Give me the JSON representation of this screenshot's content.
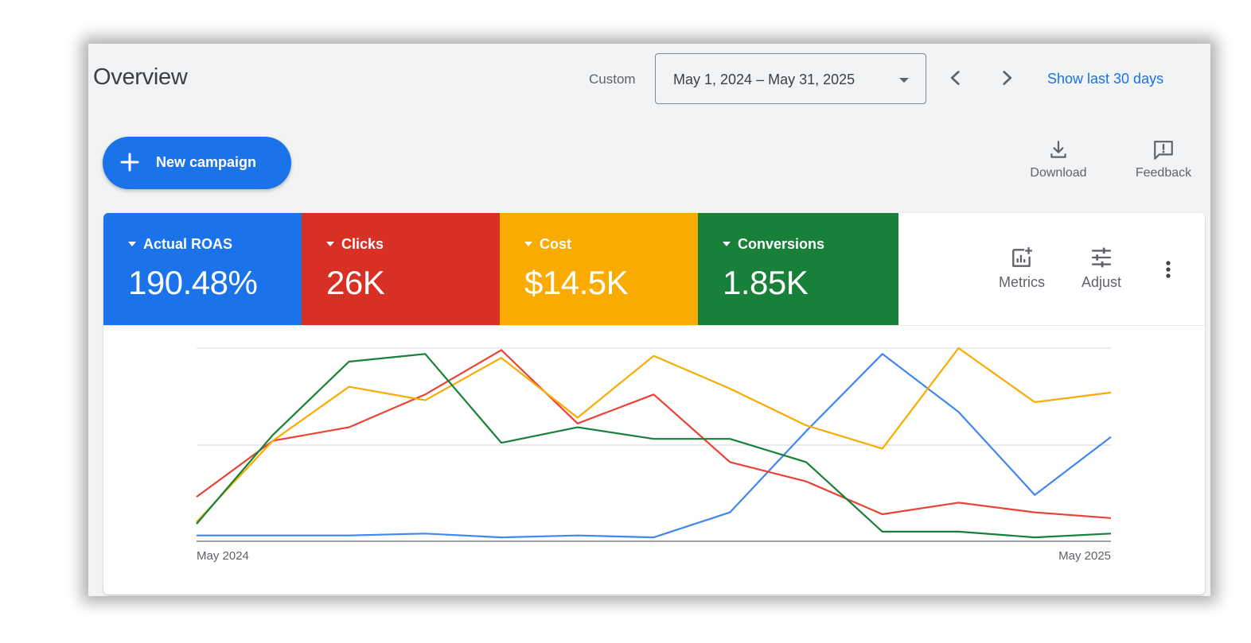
{
  "header": {
    "title": "Overview",
    "custom_label": "Custom",
    "date_range": "May 1, 2024 – May 31, 2025",
    "show_last": "Show last 30 days",
    "prev_icon": "chevron-left-icon",
    "next_icon": "chevron-right-icon"
  },
  "actions": {
    "new_campaign": "New campaign",
    "download": "Download",
    "feedback": "Feedback"
  },
  "metrics": [
    {
      "label": "Actual ROAS",
      "value": "190.48%",
      "color": "#1a73e8"
    },
    {
      "label": "Clicks",
      "value": "26K",
      "color": "#d93025"
    },
    {
      "label": "Cost",
      "value": "$14.5K",
      "color": "#f9ab00"
    },
    {
      "label": "Conversions",
      "value": "1.85K",
      "color": "#188038"
    }
  ],
  "card_tools": {
    "metrics": "Metrics",
    "adjust": "Adjust",
    "more_icon": "more-vert-icon"
  },
  "chart_data": {
    "type": "line",
    "x_labels": [
      "May 2024",
      "May 2025"
    ],
    "grid": true,
    "legend": "none",
    "y_domain": [
      0,
      100
    ],
    "series": [
      {
        "color": "#4285f4",
        "values": [
          3,
          3,
          3,
          4,
          2,
          3,
          2,
          15,
          57,
          97,
          67,
          24,
          54
        ]
      },
      {
        "color": "#ea4335",
        "values": [
          23,
          52,
          59,
          76,
          99,
          61,
          76,
          41,
          31,
          14,
          20,
          15,
          12
        ]
      },
      {
        "color": "#f9ab00",
        "values": [
          10,
          52,
          80,
          73,
          95,
          64,
          96,
          79,
          60,
          48,
          100,
          72,
          77
        ]
      },
      {
        "color": "#188038",
        "values": [
          9,
          55,
          93,
          97,
          51,
          59,
          53,
          53,
          41,
          5,
          5,
          2,
          4
        ]
      }
    ]
  }
}
